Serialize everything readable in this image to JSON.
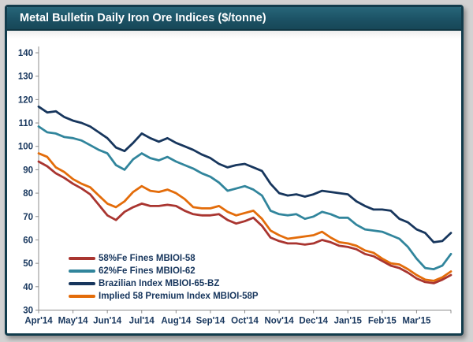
{
  "panel": {
    "title": "Metal Bulletin Daily Iron Ore Indices ($/tonne)",
    "title_bar_color": "#1c5265",
    "border_color": "#123c4c",
    "background": "#ffffff"
  },
  "chart_data": {
    "type": "line",
    "title": "Metal Bulletin Daily Iron Ore Indices ($/tonne)",
    "unit": "$/tonne",
    "x_tick_labels": [
      "Apr'14",
      "May'14",
      "Jun'14",
      "Jul'14",
      "Aug'14",
      "Sep'14",
      "Oct'14",
      "Nov'14",
      "Dec'14",
      "Jan'15",
      "Feb'15",
      "Mar'15"
    ],
    "y_ticks": [
      30,
      40,
      50,
      60,
      70,
      80,
      90,
      100,
      110,
      120,
      130,
      140
    ],
    "ylim": [
      30,
      140
    ],
    "grid": false,
    "legend_position": "lower-left",
    "axis_color": "#8c8c8c",
    "tick_label_color": "#17365d",
    "points_per_month": 4,
    "series": [
      {
        "name": "58%Fe Fines MBIOI-58",
        "color": "#a93530",
        "values": [
          93.5,
          91.5,
          88.5,
          86.5,
          84,
          82,
          79.5,
          75,
          70.5,
          68.5,
          72,
          74,
          75.5,
          74.5,
          74.5,
          75,
          74.5,
          72.5,
          71,
          70.5,
          70.5,
          71,
          68.5,
          67,
          68,
          69.5,
          66,
          61,
          59.5,
          58.5,
          58.5,
          58,
          58.5,
          60,
          59,
          57.5,
          57,
          56,
          54,
          53,
          51,
          49,
          48,
          46,
          43.5,
          42,
          41.5,
          43,
          45
        ]
      },
      {
        "name": "62%Fe Fines MBIOI-62",
        "color": "#31859c",
        "values": [
          108.5,
          106,
          105.5,
          104,
          103.5,
          102.5,
          100.5,
          98.5,
          97,
          92,
          90,
          94.5,
          97,
          95,
          94,
          95.5,
          93.5,
          92,
          90.5,
          88.5,
          87,
          84.5,
          81,
          82,
          83,
          81.5,
          79,
          72.5,
          71,
          70.5,
          71,
          69,
          70,
          72,
          71,
          69.5,
          69.5,
          66.5,
          64.5,
          64,
          63.5,
          62,
          60.5,
          57,
          52,
          48,
          47.5,
          49,
          54
        ]
      },
      {
        "name": "Brazilian Index MBIOI-65-BZ",
        "color": "#17365d",
        "values": [
          117,
          114.5,
          115,
          112.5,
          111,
          110,
          108.5,
          106,
          103.5,
          99.5,
          98,
          101.5,
          105.5,
          103.5,
          102,
          103.5,
          101.5,
          100,
          98.5,
          96.5,
          95,
          92.5,
          91,
          92,
          92.5,
          91,
          89.5,
          84,
          80,
          79,
          79.5,
          78.5,
          79.5,
          81,
          80.5,
          80,
          79.5,
          76.5,
          74.5,
          73,
          73,
          72.5,
          69,
          67.5,
          64.5,
          63,
          59,
          59.5,
          63
        ]
      },
      {
        "name": "Implied 58 Premium Index MBIOI-58P",
        "color": "#e36c0a",
        "values": [
          97,
          95.5,
          91,
          89,
          86,
          84,
          82.5,
          79,
          75.5,
          74,
          76.5,
          80.5,
          83,
          81,
          80.5,
          81.5,
          80,
          77.5,
          74,
          73.5,
          73.5,
          74.5,
          72,
          70.5,
          71.5,
          72.5,
          69,
          64,
          62,
          60.5,
          61,
          61.5,
          62,
          63.5,
          61,
          59,
          58.5,
          57.5,
          55.5,
          54.5,
          52,
          50,
          49.5,
          47.5,
          45,
          43,
          42.5,
          44,
          46.5
        ]
      }
    ]
  }
}
